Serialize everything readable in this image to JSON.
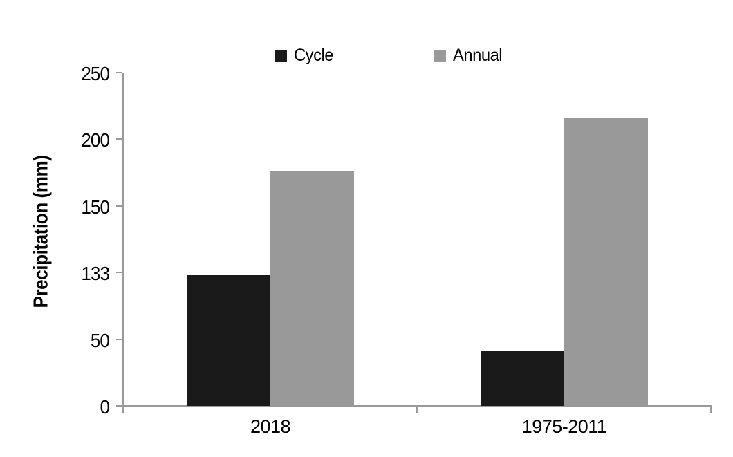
{
  "chart_data": {
    "type": "bar",
    "title": "",
    "xlabel": "",
    "ylabel": "Precipitation (mm)",
    "categories": [
      "2018",
      "1975-2011"
    ],
    "series": [
      {
        "name": "Cycle",
        "color": "#1a1a1a",
        "values": [
          130,
          41
        ]
      },
      {
        "name": "Annual",
        "color": "#999999",
        "values": [
          176,
          216
        ]
      }
    ],
    "yticks": [
      0,
      50,
      133,
      150,
      200,
      250
    ],
    "ytick_labels": [
      "0",
      "50",
      "133",
      "150",
      "200",
      "250"
    ],
    "axis_note": "y-axis ticks are evenly spaced despite non-uniform label values; bar heights map piecewise-linearly between adjacent ticks",
    "ylim_labels": [
      0,
      250
    ],
    "grid": false,
    "legend_position": "top-center",
    "axis_color": "#999999",
    "background": "#ffffff"
  },
  "legend": {
    "items": [
      {
        "label": "Cycle",
        "color": "#1a1a1a"
      },
      {
        "label": "Annual",
        "color": "#999999"
      }
    ]
  }
}
